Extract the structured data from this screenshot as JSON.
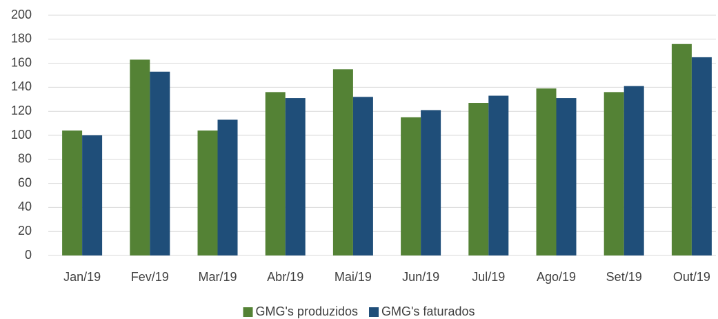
{
  "chart_data": {
    "type": "bar",
    "categories": [
      "Jan/19",
      "Fev/19",
      "Mar/19",
      "Abr/19",
      "Mai/19",
      "Jun/19",
      "Jul/19",
      "Ago/19",
      "Set/19",
      "Out/19"
    ],
    "series": [
      {
        "name": "GMG's produzidos",
        "color": "#548235",
        "values": [
          104,
          163,
          104,
          136,
          155,
          115,
          127,
          139,
          136,
          176
        ]
      },
      {
        "name": "GMG's faturados",
        "color": "#1f4e79",
        "values": [
          100,
          153,
          113,
          131,
          132,
          121,
          133,
          131,
          141,
          165
        ]
      }
    ],
    "ylim": [
      0,
      200
    ],
    "yticks": [
      0,
      20,
      40,
      60,
      80,
      100,
      120,
      140,
      160,
      180,
      200
    ],
    "grid": true,
    "legend": "bottom"
  }
}
